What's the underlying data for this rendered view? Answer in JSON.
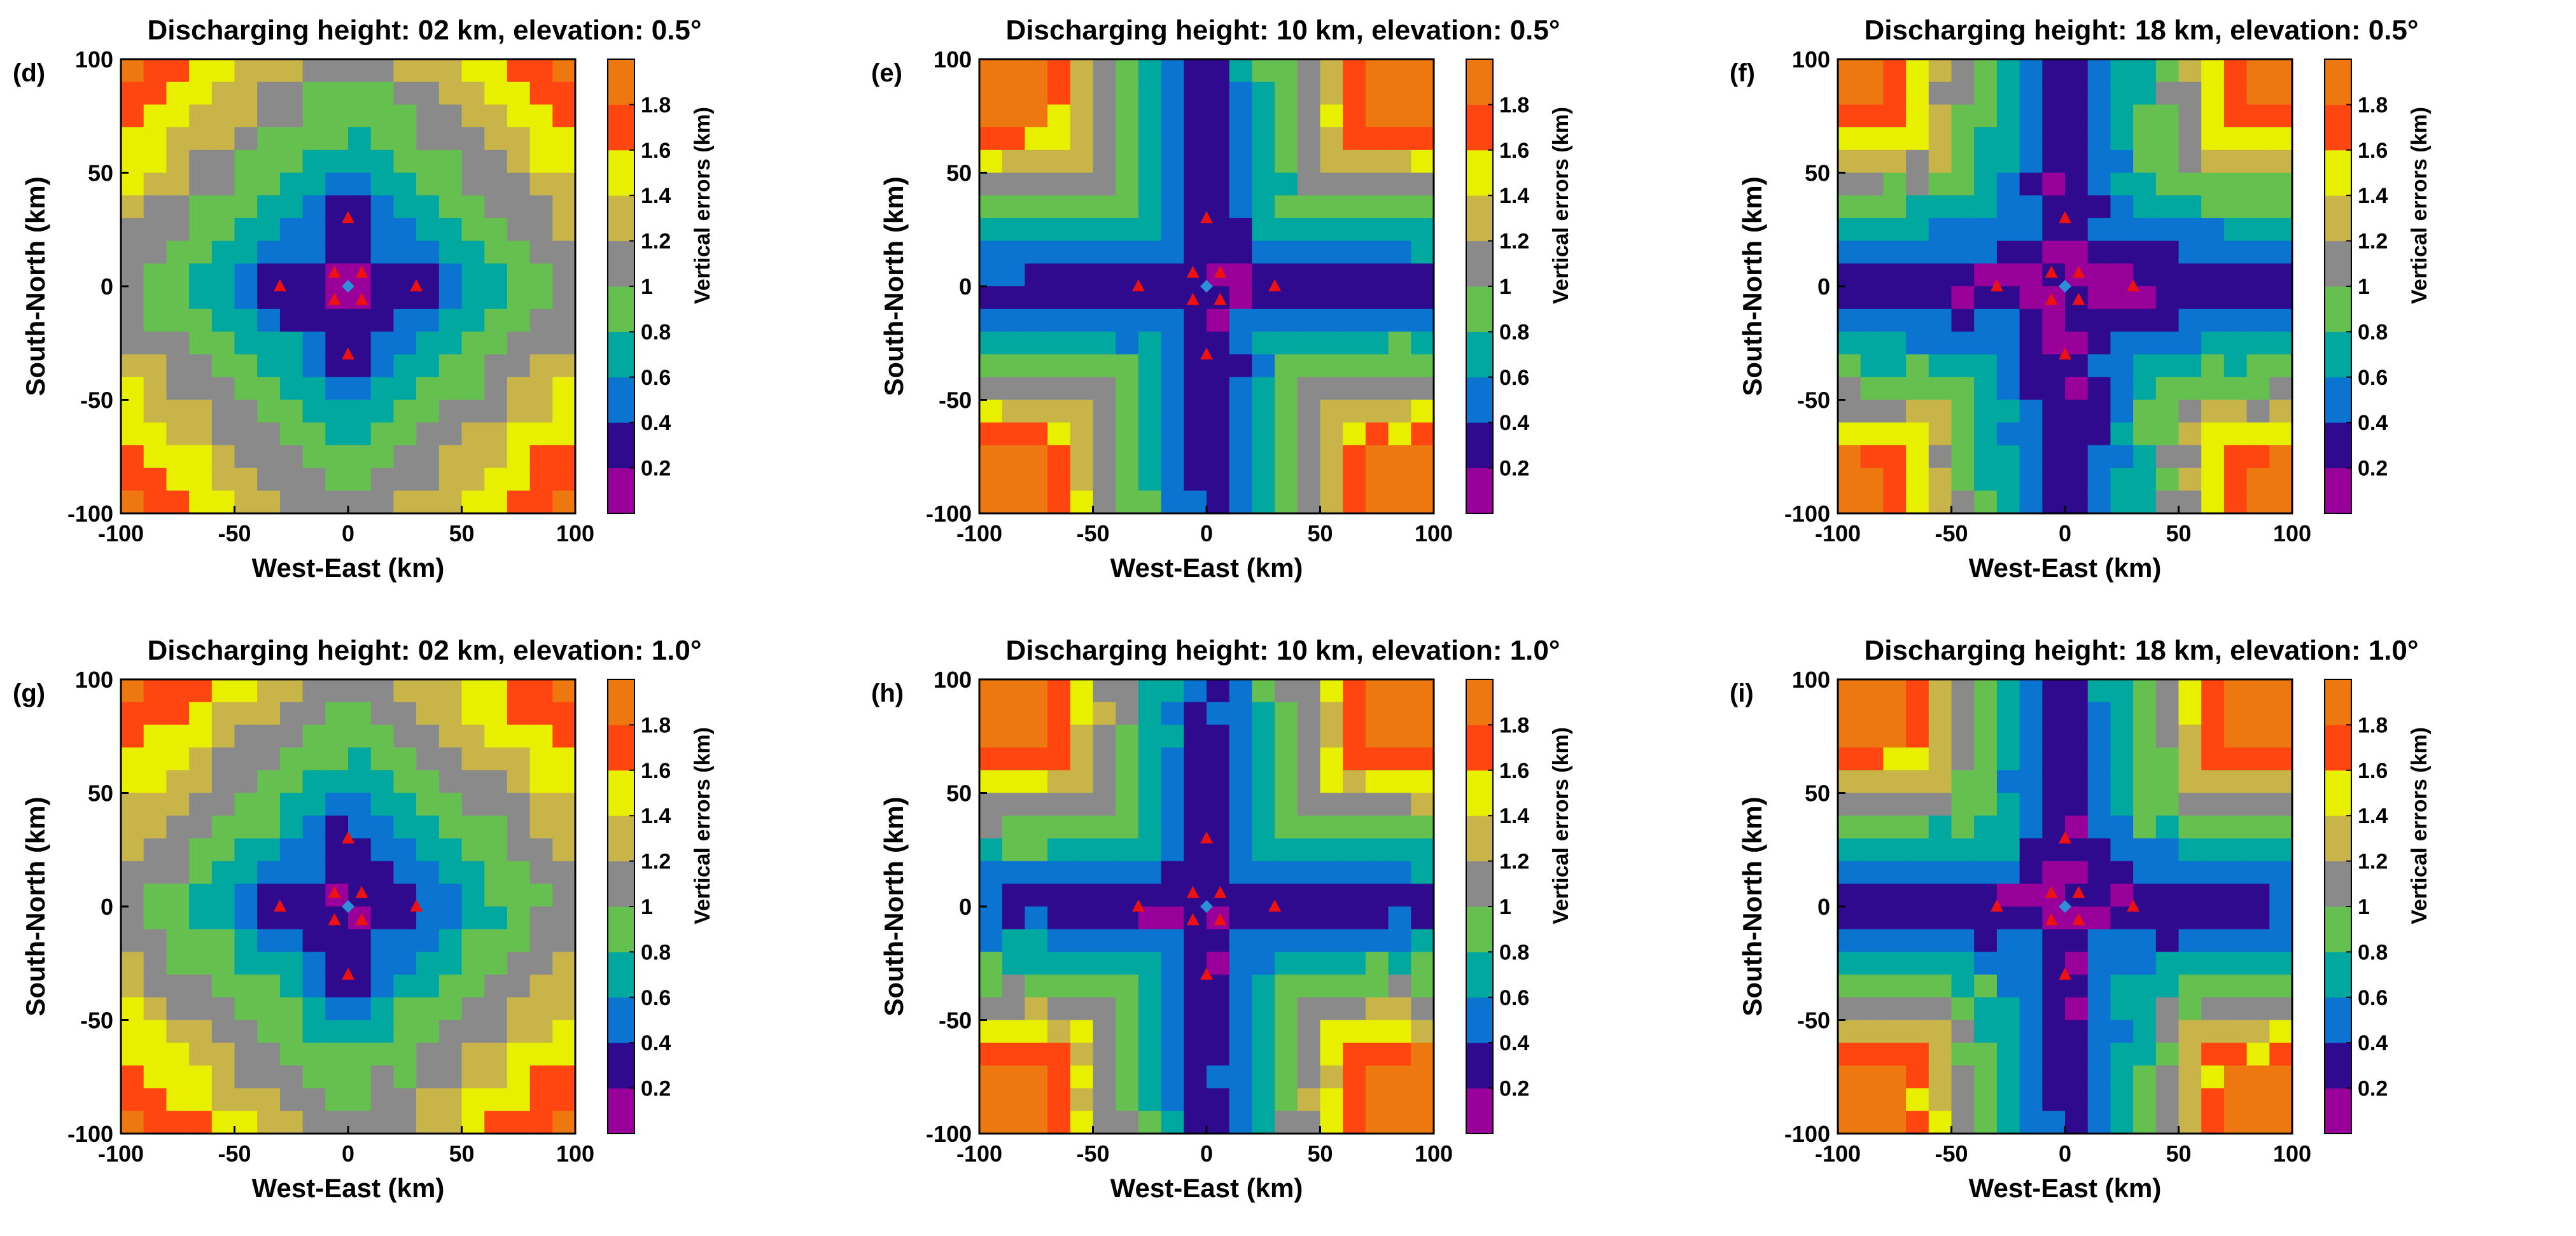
{
  "figure": {
    "description_colorbar": "Vertical errors (km)"
  },
  "colors": {
    "levels": [
      "#990099",
      "#2f0a8f",
      "#0b73d0",
      "#00a8a0",
      "#66c050",
      "#8a8a8a",
      "#c8b448",
      "#e8f000",
      "#ff4510",
      "#ee7810"
    ],
    "station_marker": "#ee1111",
    "center_marker": "#2d8fd8"
  },
  "chart_data": [
    {
      "type": "contour",
      "panel_label": "(d)",
      "title": "Discharging height: 02 km, elevation: 0.5°",
      "xlabel": "West-East (km)",
      "ylabel": "South-North (km)",
      "xlim": [
        -100,
        100
      ],
      "ylim": [
        -100,
        100
      ],
      "xticks": [
        "-100",
        "-50",
        "0",
        "50",
        "100"
      ],
      "yticks": [
        "100",
        "50",
        "0",
        "-50",
        "-100"
      ],
      "colorbar": {
        "label": "Vertical errors (km)",
        "ticks": [
          "1.8",
          "1.6",
          "1.4",
          "1.2",
          "1",
          "0.8",
          "0.6",
          "0.4",
          "0.2"
        ],
        "range": [
          0,
          2
        ]
      },
      "field": {
        "kind": "blob",
        "base": 0.1,
        "scale": 0.0098,
        "p": 1.3,
        "stretch": 0.26,
        "grid": 20,
        "noise": 0.1
      },
      "stations": [
        [
          0,
          30
        ],
        [
          0,
          -30
        ],
        [
          30,
          0
        ],
        [
          -30,
          0
        ],
        [
          6,
          6
        ],
        [
          -6,
          6
        ],
        [
          6,
          -6
        ],
        [
          -6,
          -6
        ]
      ]
    },
    {
      "type": "contour",
      "panel_label": "(e)",
      "title": "Discharging height: 10 km, elevation: 0.5°",
      "xlabel": "West-East (km)",
      "ylabel": "South-North (km)",
      "xlim": [
        -100,
        100
      ],
      "ylim": [
        -100,
        100
      ],
      "xticks": [
        "-100",
        "-50",
        "0",
        "50",
        "100"
      ],
      "yticks": [
        "100",
        "50",
        "0",
        "-50",
        "-100"
      ],
      "colorbar": {
        "label": "Vertical errors (km)",
        "ticks": [
          "1.8",
          "1.6",
          "1.4",
          "1.2",
          "1",
          "0.8",
          "0.6",
          "0.4",
          "0.2"
        ],
        "range": [
          0,
          2
        ]
      },
      "field": {
        "kind": "clover",
        "base": 0.1,
        "scale": 0.0115,
        "p": 1.75,
        "stretch": 0.55,
        "grid": 20,
        "noise": 0.12
      },
      "stations": [
        [
          0,
          30
        ],
        [
          0,
          -30
        ],
        [
          30,
          0
        ],
        [
          -30,
          0
        ],
        [
          6,
          6
        ],
        [
          -6,
          6
        ],
        [
          6,
          -6
        ],
        [
          -6,
          -6
        ]
      ]
    },
    {
      "type": "contour",
      "panel_label": "(f)",
      "title": "Discharging height: 18 km, elevation: 0.5°",
      "xlabel": "West-East (km)",
      "ylabel": "South-North (km)",
      "xlim": [
        -100,
        100
      ],
      "ylim": [
        -100,
        100
      ],
      "xticks": [
        "-100",
        "-50",
        "0",
        "50",
        "100"
      ],
      "yticks": [
        "100",
        "50",
        "0",
        "-50",
        "-100"
      ],
      "colorbar": {
        "label": "Vertical errors (km)",
        "ticks": [
          "1.8",
          "1.6",
          "1.4",
          "1.2",
          "1",
          "0.8",
          "0.6",
          "0.4",
          "0.2"
        ],
        "range": [
          0,
          2
        ]
      },
      "field": {
        "kind": "clover",
        "base": 0.08,
        "scale": 0.0095,
        "p": 1.75,
        "stretch": 0.7,
        "grid": 20,
        "noise": 0.12
      },
      "stations": [
        [
          0,
          30
        ],
        [
          0,
          -30
        ],
        [
          30,
          0
        ],
        [
          -30,
          0
        ],
        [
          6,
          6
        ],
        [
          -6,
          6
        ],
        [
          6,
          -6
        ],
        [
          -6,
          -6
        ]
      ]
    },
    {
      "type": "contour",
      "panel_label": "(g)",
      "title": "Discharging height: 02 km, elevation: 1.0°",
      "xlabel": "West-East (km)",
      "ylabel": "South-North (km)",
      "xlim": [
        -100,
        100
      ],
      "ylim": [
        -100,
        100
      ],
      "xticks": [
        "-100",
        "-50",
        "0",
        "50",
        "100"
      ],
      "yticks": [
        "100",
        "50",
        "0",
        "-50",
        "-100"
      ],
      "colorbar": {
        "label": "Vertical errors (km)",
        "ticks": [
          "1.8",
          "1.6",
          "1.4",
          "1.2",
          "1",
          "0.8",
          "0.6",
          "0.4",
          "0.2"
        ],
        "range": [
          0,
          2
        ]
      },
      "field": {
        "kind": "blob",
        "base": 0.15,
        "scale": 0.0095,
        "p": 1.3,
        "stretch": 0.26,
        "grid": 20,
        "noise": 0.1
      },
      "stations": [
        [
          0,
          30
        ],
        [
          0,
          -30
        ],
        [
          30,
          0
        ],
        [
          -30,
          0
        ],
        [
          6,
          6
        ],
        [
          -6,
          6
        ],
        [
          6,
          -6
        ],
        [
          -6,
          -6
        ]
      ]
    },
    {
      "type": "contour",
      "panel_label": "(h)",
      "title": "Discharging height: 10 km, elevation: 1.0°",
      "xlabel": "West-East (km)",
      "ylabel": "South-North (km)",
      "xlim": [
        -100,
        100
      ],
      "ylim": [
        -100,
        100
      ],
      "xticks": [
        "-100",
        "-50",
        "0",
        "50",
        "100"
      ],
      "yticks": [
        "100",
        "50",
        "0",
        "-50",
        "-100"
      ],
      "colorbar": {
        "label": "Vertical errors (km)",
        "ticks": [
          "1.8",
          "1.6",
          "1.4",
          "1.2",
          "1",
          "0.8",
          "0.6",
          "0.4",
          "0.2"
        ],
        "range": [
          0,
          2
        ]
      },
      "field": {
        "kind": "clover",
        "base": 0.1,
        "scale": 0.0118,
        "p": 1.75,
        "stretch": 0.6,
        "grid": 20,
        "noise": 0.14
      },
      "stations": [
        [
          0,
          30
        ],
        [
          0,
          -30
        ],
        [
          30,
          0
        ],
        [
          -30,
          0
        ],
        [
          6,
          6
        ],
        [
          -6,
          6
        ],
        [
          6,
          -6
        ],
        [
          -6,
          -6
        ]
      ]
    },
    {
      "type": "contour",
      "panel_label": "(i)",
      "title": "Discharging height: 18 km, elevation: 1.0°",
      "xlabel": "West-East (km)",
      "ylabel": "South-North (km)",
      "xlim": [
        -100,
        100
      ],
      "ylim": [
        -100,
        100
      ],
      "xticks": [
        "-100",
        "-50",
        "0",
        "50",
        "100"
      ],
      "yticks": [
        "100",
        "50",
        "0",
        "-50",
        "-100"
      ],
      "colorbar": {
        "label": "Vertical errors (km)",
        "ticks": [
          "1.8",
          "1.6",
          "1.4",
          "1.2",
          "1",
          "0.8",
          "0.6",
          "0.4",
          "0.2"
        ],
        "range": [
          0,
          2
        ]
      },
      "field": {
        "kind": "clover",
        "base": 0.08,
        "scale": 0.0105,
        "p": 1.75,
        "stretch": 0.72,
        "grid": 20,
        "noise": 0.14
      },
      "stations": [
        [
          0,
          30
        ],
        [
          0,
          -30
        ],
        [
          30,
          0
        ],
        [
          -30,
          0
        ],
        [
          6,
          6
        ],
        [
          -6,
          6
        ],
        [
          6,
          -6
        ],
        [
          -6,
          -6
        ]
      ]
    }
  ]
}
